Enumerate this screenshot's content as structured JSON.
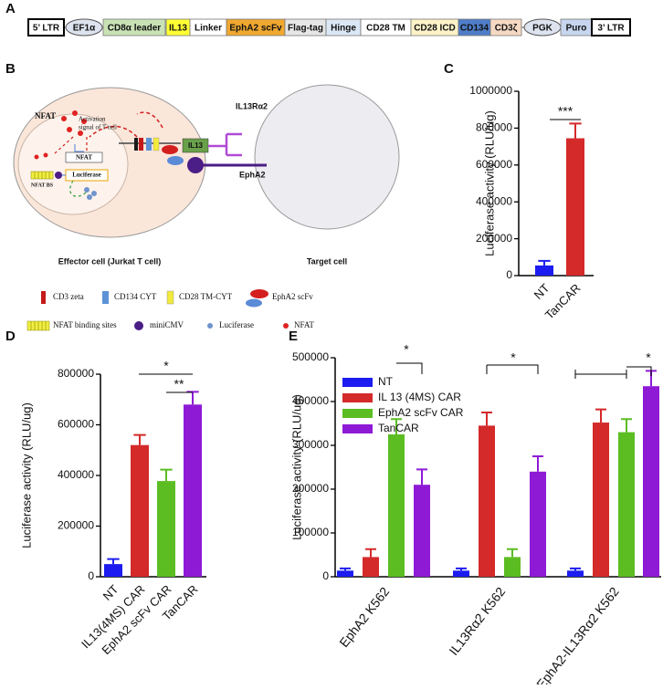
{
  "panel_labels": [
    "A",
    "B",
    "C",
    "D",
    "E"
  ],
  "construct": [
    "5’ LTR",
    "EF1α",
    "CD8α leader",
    "IL13",
    "Linker",
    "EphA2 scFv",
    "Flag-tag",
    "Hinge",
    "CD28 TM",
    "CD28 ICD",
    "CD134",
    "CD3ζ",
    "PGK",
    "Puro",
    "3’ LTR"
  ],
  "schematic": {
    "nfat": "NFAT",
    "activation": [
      "Activation",
      "signal of T cell"
    ],
    "nfat_box": "NFAT",
    "luciferase": "Luciferase",
    "nfat_bs": "NFAT BS",
    "il13ra2": "IL13Rα2",
    "il13": "IL13",
    "epha2": "EphA2",
    "effector": "Effector cell (Jurkat T cell)",
    "target": "Target cell",
    "legend": [
      "CD3 zeta",
      "CD134 CYT",
      "CD28 TM-CYT",
      "EphA2 scFv",
      "NFAT binding sites",
      "miniCMV",
      "Luciferase",
      "NFAT"
    ]
  },
  "chart_data": [
    {
      "type": "bar",
      "ylabel": "Luciferase activity (RLU/ug)",
      "categories": [
        "NT",
        "TanCAR"
      ],
      "values": [
        55000,
        745000
      ],
      "errors": [
        25000,
        80000
      ],
      "colors": [
        "#1c1cf0",
        "#d42a2a"
      ],
      "ylim": [
        0,
        1000000
      ],
      "yticks": [
        0,
        200000,
        400000,
        600000,
        800000,
        1000000
      ],
      "annotations": [
        "***"
      ]
    },
    {
      "type": "bar",
      "ylabel": "Luciferase activity (RLU/ug)",
      "categories": [
        "NT",
        "IL13(4MS) CAR",
        "EphA2 scFv CAR",
        "TanCAR"
      ],
      "values": [
        50000,
        520000,
        378000,
        680000
      ],
      "errors": [
        20000,
        40000,
        45000,
        50000
      ],
      "colors": [
        "#1c1cf0",
        "#d42a2a",
        "#5bbd22",
        "#8e1ad6"
      ],
      "ylim": [
        0,
        800000
      ],
      "yticks": [
        0,
        200000,
        400000,
        600000,
        800000
      ],
      "annotations": [
        "*",
        "**"
      ]
    },
    {
      "type": "grouped_bar",
      "ylabel": "Luciferase activity (RLU/ug)",
      "categories": [
        "EphA2 K562",
        "IL13Rα2 K562",
        "EphA2-IL13Rα2 K562"
      ],
      "series": [
        {
          "name": "NT",
          "color": "#1c1cf0",
          "values": [
            14000,
            14000,
            14000
          ],
          "errors": [
            5000,
            5000,
            5000
          ]
        },
        {
          "name": "IL 13 (4MS) CAR",
          "color": "#d42a2a",
          "values": [
            45000,
            345000,
            352000
          ],
          "errors": [
            18000,
            30000,
            30000
          ]
        },
        {
          "name": "EphA2 scFv CAR",
          "color": "#5bbd22",
          "values": [
            325000,
            45000,
            330000
          ],
          "errors": [
            35000,
            18000,
            30000
          ]
        },
        {
          "name": "TanCAR",
          "color": "#8e1ad6",
          "values": [
            210000,
            240000,
            435000
          ],
          "errors": [
            35000,
            35000,
            35000
          ]
        }
      ],
      "ylim": [
        0,
        500000
      ],
      "yticks": [
        0,
        100000,
        200000,
        300000,
        400000,
        500000
      ],
      "annotations": [
        "*",
        "*",
        "*"
      ]
    }
  ]
}
